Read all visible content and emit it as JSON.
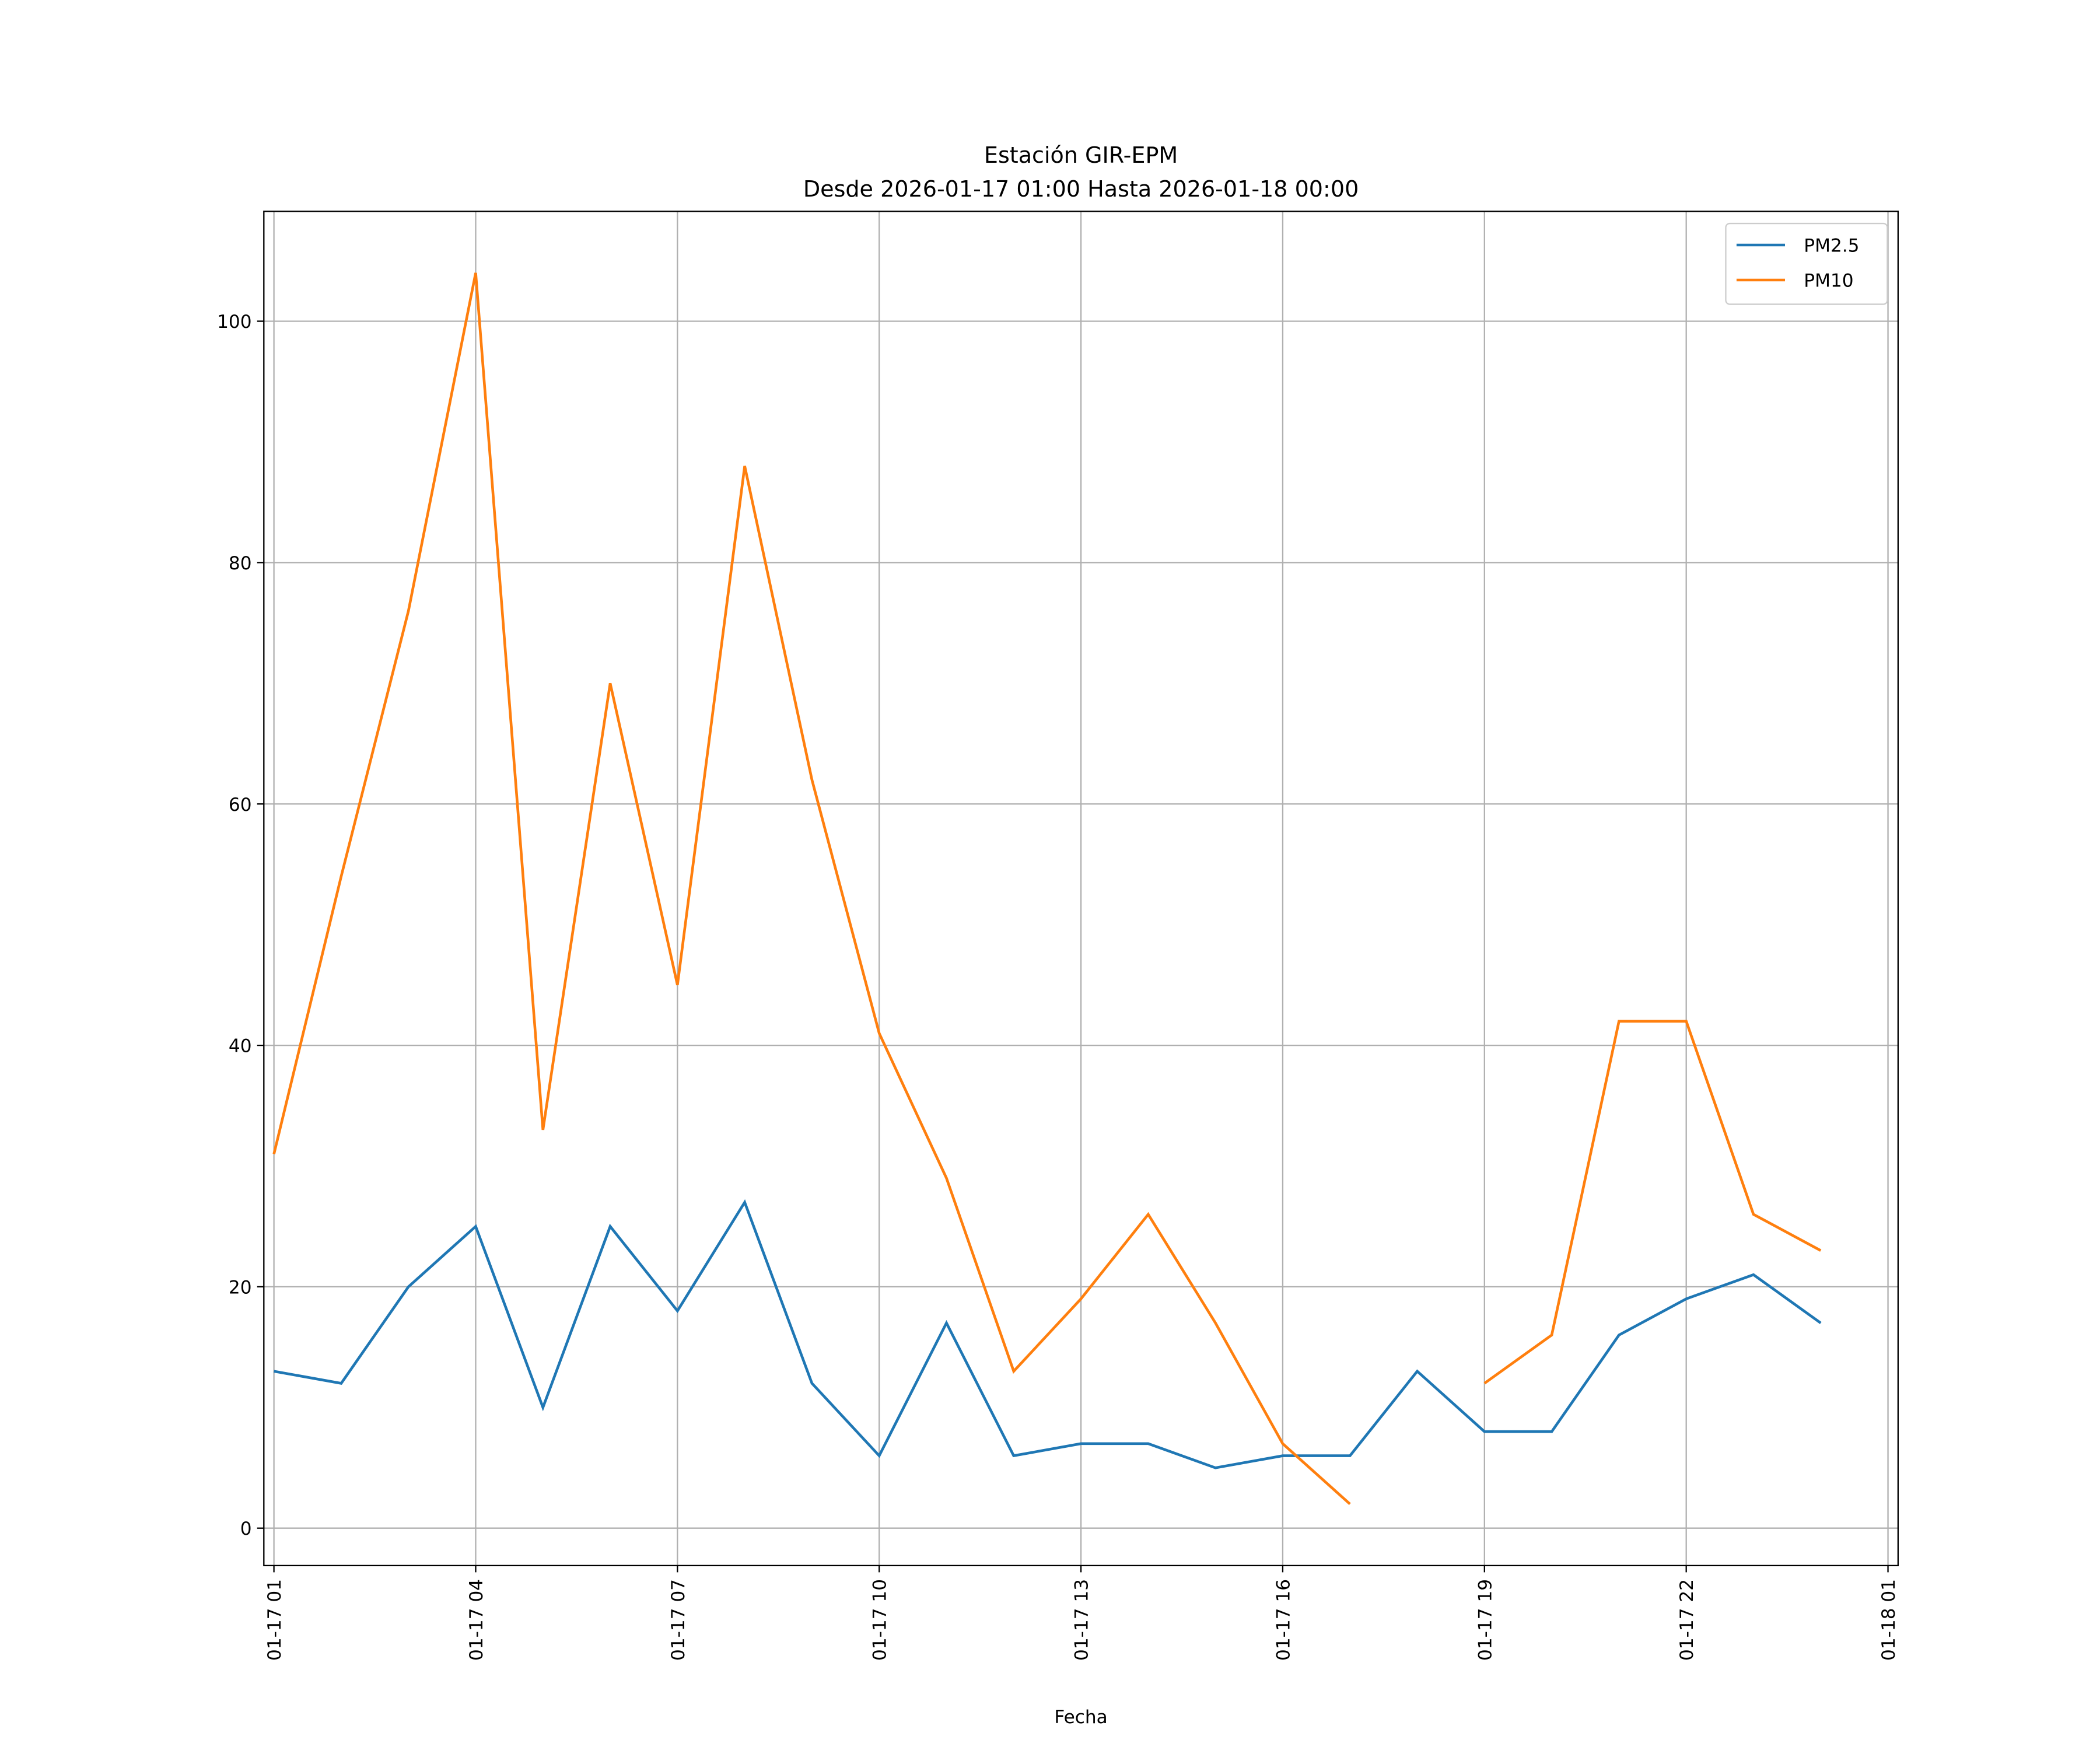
{
  "chart_data": {
    "type": "line",
    "title": "Estación GIR-EPM",
    "subtitle": "Desde 2026-01-17 01:00 Hasta 2026-01-18 00:00",
    "xlabel": "Fecha",
    "ylabel": "",
    "x": [
      "2026-01-17 01:00",
      "2026-01-17 02:00",
      "2026-01-17 03:00",
      "2026-01-17 04:00",
      "2026-01-17 05:00",
      "2026-01-17 06:00",
      "2026-01-17 07:00",
      "2026-01-17 08:00",
      "2026-01-17 09:00",
      "2026-01-17 10:00",
      "2026-01-17 11:00",
      "2026-01-17 12:00",
      "2026-01-17 13:00",
      "2026-01-17 14:00",
      "2026-01-17 15:00",
      "2026-01-17 16:00",
      "2026-01-17 17:00",
      "2026-01-17 18:00",
      "2026-01-17 19:00",
      "2026-01-17 20:00",
      "2026-01-17 21:00",
      "2026-01-17 22:00",
      "2026-01-17 23:00",
      "2026-01-18 00:00"
    ],
    "series": [
      {
        "name": "PM2.5",
        "color": "#1f77b4",
        "values": [
          13,
          12,
          20,
          25,
          10,
          25,
          18,
          27,
          12,
          6,
          17,
          6,
          7,
          7,
          5,
          6,
          6,
          13,
          8,
          8,
          16,
          19,
          21,
          17
        ]
      },
      {
        "name": "PM10",
        "color": "#ff7f0e",
        "values": [
          31,
          54,
          76,
          104,
          33,
          70,
          45,
          88,
          62,
          41,
          29,
          13,
          19,
          26,
          17,
          7,
          2,
          null,
          12,
          16,
          42,
          42,
          26,
          23
        ]
      }
    ],
    "xlim": [
      "2026-01-17 00:51",
      "2026-01-18 01:09"
    ],
    "ylim": [
      -3.1,
      109.1
    ],
    "xticks": [
      "01-17 01",
      "01-17 04",
      "01-17 07",
      "01-17 10",
      "01-17 13",
      "01-17 16",
      "01-17 19",
      "01-17 22",
      "01-18 01"
    ],
    "yticks": [
      "0",
      "20",
      "40",
      "60",
      "80",
      "100"
    ],
    "ytick_values": [
      0,
      20,
      40,
      60,
      80,
      100
    ],
    "grid": true,
    "legend": "top-right"
  }
}
